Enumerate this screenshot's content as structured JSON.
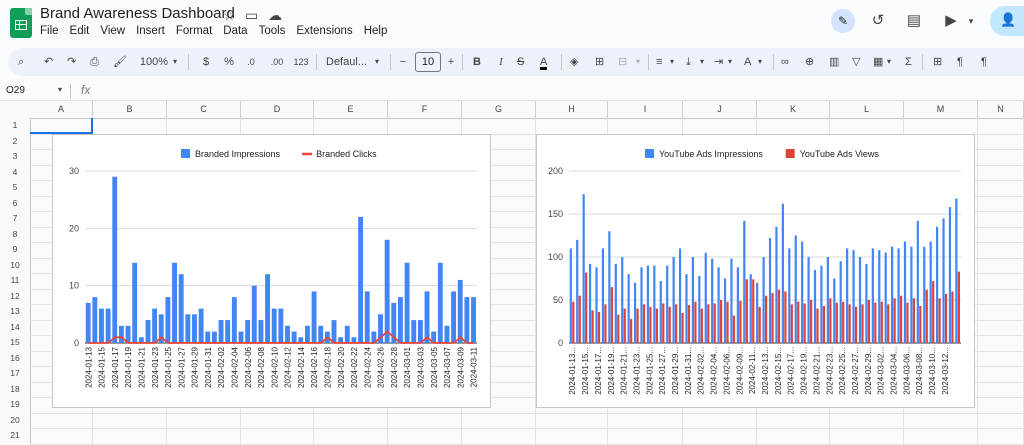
{
  "app": {
    "title": "Brand Awareness Dashboard",
    "menu": [
      "File",
      "Edit",
      "View",
      "Insert",
      "Format",
      "Data",
      "Tools",
      "Extensions",
      "Help"
    ]
  },
  "toolbar": {
    "zoom": "100%",
    "currency": "$",
    "percent": "%",
    "dec_decrease": ".0",
    "dec_increase": ".00",
    "number_format": "123",
    "font": "Defaul...",
    "minus": "−",
    "font_size": "10",
    "plus": "+",
    "bold": "B",
    "italic": "I"
  },
  "formula_bar": {
    "name_box": "O29",
    "fx": "fx"
  },
  "columns": [
    "A",
    "B",
    "C",
    "D",
    "E",
    "F",
    "G",
    "H",
    "I",
    "J",
    "K",
    "L",
    "M",
    "N"
  ],
  "rows": [
    "1",
    "2",
    "3",
    "4",
    "5",
    "6",
    "7",
    "8",
    "9",
    "10",
    "11",
    "12",
    "13",
    "14",
    "15",
    "16",
    "17",
    "18",
    "19",
    "20",
    "21"
  ],
  "chart_data": [
    {
      "type": "bar",
      "title": "",
      "legend": "top",
      "xlabel": "",
      "ylabel": "",
      "ylim": [
        0,
        30
      ],
      "yticks": [
        "0",
        "10",
        "20",
        "30"
      ],
      "categories": [
        "2024-01-13",
        "2024-01-14",
        "2024-01-15",
        "2024-01-16",
        "2024-01-17",
        "2024-01-18",
        "2024-01-19",
        "2024-01-20",
        "2024-01-21",
        "2024-01-22",
        "2024-01-23",
        "2024-01-24",
        "2024-01-25",
        "2024-01-26",
        "2024-01-27",
        "2024-01-28",
        "2024-01-29",
        "2024-01-30",
        "2024-01-31",
        "2024-02-01",
        "2024-02-02",
        "2024-02-03",
        "2024-02-04",
        "2024-02-05",
        "2024-02-06",
        "2024-02-07",
        "2024-02-08",
        "2024-02-09",
        "2024-02-10",
        "2024-02-11",
        "2024-02-12",
        "2024-02-13",
        "2024-02-14",
        "2024-02-15",
        "2024-02-16",
        "2024-02-17",
        "2024-02-18",
        "2024-02-19",
        "2024-02-20",
        "2024-02-21",
        "2024-02-22",
        "2024-02-23",
        "2024-02-24",
        "2024-02-25",
        "2024-02-26",
        "2024-02-27",
        "2024-02-28",
        "2024-02-29",
        "2024-03-01",
        "2024-03-02",
        "2024-03-03",
        "2024-03-04",
        "2024-03-05",
        "2024-03-06",
        "2024-03-07",
        "2024-03-08",
        "2024-03-09",
        "2024-03-10",
        "2024-03-11"
      ],
      "series": [
        {
          "name": "Branded Impressions",
          "kind": "bar",
          "color": "#4285f4",
          "values": [
            7,
            8,
            6,
            6,
            29,
            3,
            3,
            14,
            1,
            4,
            6,
            5,
            8,
            14,
            12,
            5,
            5,
            6,
            2,
            2,
            4,
            4,
            8,
            2,
            4,
            10,
            4,
            12,
            6,
            6,
            3,
            2,
            1,
            3,
            9,
            3,
            2,
            4,
            1,
            3,
            1,
            22,
            9,
            2,
            5,
            18,
            7,
            8,
            14,
            4,
            4,
            9,
            2,
            14,
            3,
            9,
            11,
            8,
            8
          ]
        },
        {
          "name": "Branded Clicks",
          "kind": "line",
          "color": "#ea4335",
          "values": [
            0,
            0,
            0,
            0,
            1,
            1,
            0,
            0,
            0,
            0,
            0,
            1,
            0,
            0,
            0,
            0,
            0,
            0,
            0,
            0,
            0,
            0,
            0,
            0,
            0,
            0,
            0,
            0,
            0,
            0,
            0,
            0,
            0,
            0,
            0,
            0,
            1,
            0,
            0,
            0,
            0,
            0,
            0,
            0,
            1,
            2,
            1,
            0,
            0,
            0,
            0,
            1,
            0,
            0,
            0,
            0,
            1,
            0,
            0
          ]
        }
      ]
    },
    {
      "type": "bar",
      "title": "",
      "legend": "top",
      "xlabel": "",
      "ylabel": "",
      "ylim": [
        0,
        200
      ],
      "yticks": [
        "0",
        "50",
        "100",
        "150",
        "200"
      ],
      "categories": [
        "2024-01-13",
        "2024-01-14",
        "2024-01-15",
        "2024-01-16",
        "2024-01-17",
        "2024-01-18",
        "2024-01-19",
        "2024-01-20",
        "2024-01-21",
        "2024-01-22",
        "2024-01-23",
        "2024-01-24",
        "2024-01-25",
        "2024-01-26",
        "2024-01-27",
        "2024-01-28",
        "2024-01-29",
        "2024-01-30",
        "2024-01-31",
        "2024-02-01",
        "2024-02-02",
        "2024-02-03",
        "2024-02-04",
        "2024-02-05",
        "2024-02-06",
        "2024-02-07",
        "2024-02-08",
        "2024-02-09",
        "2024-02-10",
        "2024-02-11",
        "2024-02-12",
        "2024-02-13",
        "2024-02-14",
        "2024-02-15",
        "2024-02-16",
        "2024-02-17",
        "2024-02-18",
        "2024-02-19",
        "2024-02-20",
        "2024-02-21",
        "2024-02-22",
        "2024-02-23",
        "2024-02-24",
        "2024-02-25",
        "2024-02-26",
        "2024-02-27",
        "2024-02-28",
        "2024-02-29",
        "2024-03-01",
        "2024-03-02",
        "2024-03-03",
        "2024-03-04",
        "2024-03-05",
        "2024-03-06",
        "2024-03-07",
        "2024-03-08",
        "2024-03-09",
        "2024-03-10",
        "2024-03-11",
        "2024-03-12",
        "2024-03-13"
      ],
      "tick_labels": [
        "2024-01-13...",
        "2024-01-15...",
        "2024-01-17...",
        "2024-01-19...",
        "2024-01-21...",
        "2024-01-23...",
        "2024-01-25...",
        "2024-01-27...",
        "2024-01-29...",
        "2024-01-31...",
        "2024-02-02...",
        "2024-02-04...",
        "2024-02-06...",
        "2024-02-09...",
        "2024-02-11...",
        "2024-02-13...",
        "2024-02-15...",
        "2024-02-17...",
        "2024-02-19...",
        "2024-02-21...",
        "2024-02-23...",
        "2024-02-25...",
        "2024-02-27...",
        "2024-02-29...",
        "2024-03-02...",
        "2024-03-04...",
        "2024-03-06...",
        "2024-03-08...",
        "2024-03-10...",
        "2024-03-12..."
      ],
      "series": [
        {
          "name": "YouTube Ads Impressions",
          "kind": "bar",
          "color": "#4285f4",
          "values": [
            110,
            120,
            173,
            92,
            88,
            110,
            130,
            92,
            100,
            80,
            70,
            88,
            90,
            90,
            72,
            90,
            100,
            110,
            80,
            100,
            78,
            105,
            98,
            88,
            75,
            98,
            88,
            142,
            80,
            70,
            100,
            122,
            135,
            162,
            110,
            125,
            118,
            100,
            85,
            90,
            100,
            75,
            95,
            110,
            108,
            100,
            92,
            110,
            108,
            105,
            112,
            110,
            118,
            112,
            142,
            112,
            118,
            135,
            145,
            158,
            168
          ]
        },
        {
          "name": "YouTube Ads Views",
          "kind": "bar",
          "color": "#db4437",
          "values": [
            48,
            55,
            82,
            38,
            36,
            45,
            65,
            33,
            40,
            28,
            40,
            45,
            42,
            40,
            46,
            42,
            45,
            35,
            44,
            48,
            40,
            45,
            46,
            50,
            48,
            32,
            49,
            74,
            74,
            42,
            55,
            58,
            62,
            60,
            45,
            48,
            46,
            50,
            40,
            43,
            52,
            47,
            48,
            45,
            42,
            45,
            50,
            47,
            48,
            45,
            52,
            55,
            47,
            52,
            43,
            62,
            72,
            52,
            57,
            60,
            83
          ]
        }
      ]
    }
  ]
}
